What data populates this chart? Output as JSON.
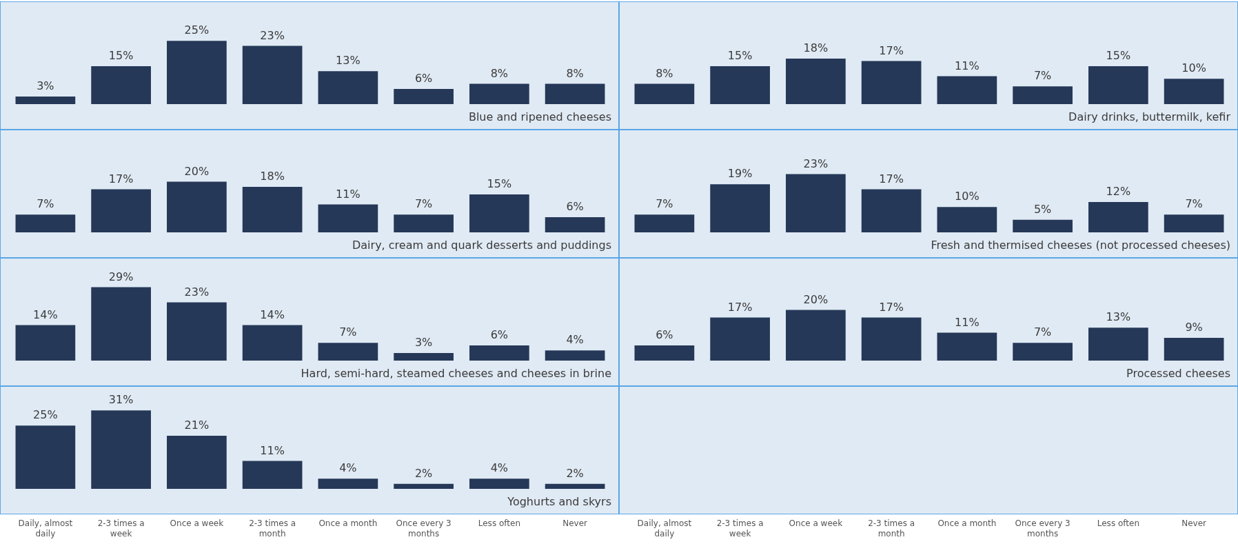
{
  "chart_data": [
    {
      "type": "bar",
      "title": "Blue and ripened cheeses",
      "categories": [
        null,
        null,
        null,
        null,
        null,
        null,
        null,
        null
      ],
      "values": [
        3,
        15,
        25,
        23,
        13,
        6,
        8,
        8
      ],
      "value_labels": [
        "3%",
        "15%",
        "25%",
        "23%",
        "13%",
        "6%",
        "8%",
        "8%"
      ],
      "color": "#253858",
      "tick_labels": false
    },
    {
      "type": "bar",
      "title": "Dairy drinks, buttermilk, kefir",
      "categories": [
        null,
        null,
        null,
        null,
        null,
        null,
        null,
        null
      ],
      "values": [
        8,
        15,
        18,
        17,
        11,
        7,
        15,
        10
      ],
      "value_labels": [
        "8%",
        "15%",
        "18%",
        "17%",
        "11%",
        "7%",
        "15%",
        "10%"
      ],
      "color": "#253858",
      "tick_labels": false
    },
    {
      "type": "bar",
      "title": "Dairy, cream and quark desserts and puddings",
      "categories": [
        null,
        null,
        null,
        null,
        null,
        null,
        null,
        null
      ],
      "values": [
        7,
        17,
        20,
        18,
        11,
        7,
        15,
        6
      ],
      "value_labels": [
        "7%",
        "17%",
        "20%",
        "18%",
        "11%",
        "7%",
        "15%",
        "6%"
      ],
      "color": "#253858",
      "tick_labels": false
    },
    {
      "type": "bar",
      "title": "Fresh and thermised cheeses (not processed cheeses)",
      "categories": [
        null,
        null,
        null,
        null,
        null,
        null,
        null,
        null
      ],
      "values": [
        7,
        19,
        23,
        17,
        10,
        5,
        12,
        7
      ],
      "value_labels": [
        "7%",
        "19%",
        "23%",
        "17%",
        "10%",
        "5%",
        "12%",
        "7%"
      ],
      "color": "#253858",
      "tick_labels": false
    },
    {
      "type": "bar",
      "title": "Hard, semi-hard, steamed cheeses and cheeses in brine",
      "categories": [
        null,
        null,
        null,
        null,
        null,
        null,
        null,
        null
      ],
      "values": [
        14,
        29,
        23,
        14,
        7,
        3,
        6,
        4
      ],
      "value_labels": [
        "14%",
        "29%",
        "23%",
        "14%",
        "7%",
        "3%",
        "6%",
        "4%"
      ],
      "color": "#253858",
      "tick_labels": false
    },
    {
      "type": "bar",
      "title": "Processed cheeses",
      "categories": [
        "Daily, almost daily",
        "2-3 times a week",
        "Once a week",
        "2-3 times a month",
        "Once a month",
        "Once every 3 months",
        "Less often",
        "Never"
      ],
      "values": [
        6,
        17,
        20,
        17,
        11,
        7,
        13,
        9
      ],
      "value_labels": [
        "6%",
        "17%",
        "20%",
        "17%",
        "11%",
        "7%",
        "13%",
        "9%"
      ],
      "color": "#253858",
      "tick_labels": "x"
    },
    {
      "type": "bar",
      "title": "Yoghurts and skyrs",
      "categories": [
        "Daily, almost daily",
        "2-3 times a week",
        "Once a week",
        "2-3 times a month",
        "Once a month",
        "Once every 3 months",
        "Less often",
        "Never"
      ],
      "values": [
        25,
        31,
        21,
        11,
        4,
        2,
        4,
        2
      ],
      "value_labels": [
        "25%",
        "31%",
        "21%",
        "11%",
        "4%",
        "2%",
        "4%",
        "2%"
      ],
      "color": "#253858",
      "tick_labels": "x"
    }
  ]
}
